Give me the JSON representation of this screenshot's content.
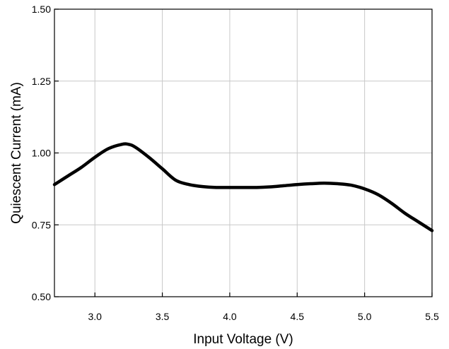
{
  "chart_data": {
    "type": "line",
    "title": "",
    "xlabel": "Input Voltage (V)",
    "ylabel": "Quiescent Current (mA)",
    "xlim": [
      2.7,
      5.5
    ],
    "ylim": [
      0.5,
      1.5
    ],
    "x_ticks": [
      3.0,
      3.5,
      4.0,
      4.5,
      5.0,
      5.5
    ],
    "x_tick_labels": [
      "3.0",
      "3.5",
      "4.0",
      "4.5",
      "5.0",
      "5.5"
    ],
    "y_ticks": [
      0.5,
      0.75,
      1.0,
      1.25,
      1.5
    ],
    "y_tick_labels": [
      "0.50",
      "0.75",
      "1.00",
      "1.25",
      "1.50"
    ],
    "grid": true,
    "legend": "none",
    "series": [
      {
        "color": "#000000",
        "x": [
          2.7,
          2.8,
          2.9,
          3.0,
          3.1,
          3.2,
          3.25,
          3.3,
          3.4,
          3.5,
          3.6,
          3.7,
          3.8,
          3.9,
          4.0,
          4.1,
          4.2,
          4.3,
          4.4,
          4.5,
          4.6,
          4.7,
          4.8,
          4.9,
          5.0,
          5.1,
          5.2,
          5.3,
          5.4,
          5.5
        ],
        "y": [
          0.89,
          0.92,
          0.95,
          0.985,
          1.015,
          1.03,
          1.03,
          1.02,
          0.985,
          0.945,
          0.905,
          0.89,
          0.883,
          0.88,
          0.88,
          0.88,
          0.88,
          0.882,
          0.886,
          0.89,
          0.893,
          0.895,
          0.893,
          0.888,
          0.875,
          0.855,
          0.825,
          0.79,
          0.76,
          0.73
        ]
      }
    ]
  }
}
